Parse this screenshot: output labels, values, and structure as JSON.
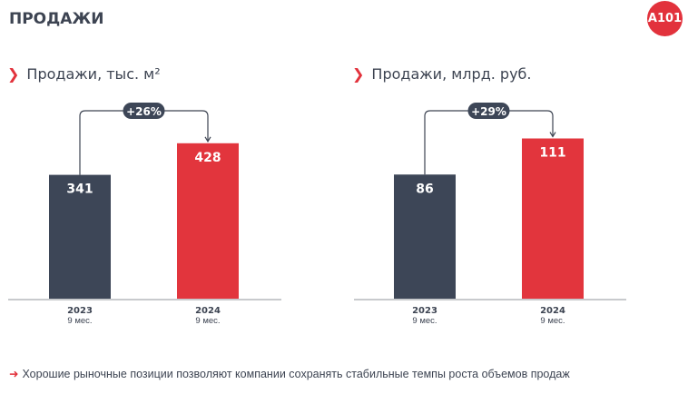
{
  "header": {
    "title": "ПРОДАЖИ",
    "logo": "A101"
  },
  "colors": {
    "dark": "#3d4657",
    "red": "#e2353d"
  },
  "footer": {
    "text": "Хорошие рыночные позиции позволяют компании сохранять стабильные темпы роста объемов продаж"
  },
  "chart_data": [
    {
      "type": "bar",
      "title": "Продажи, тыс. м²",
      "categories": [
        "2023",
        "2024"
      ],
      "category_sub": [
        "9 мес.",
        "9 мес."
      ],
      "values": [
        341,
        428
      ],
      "growth_label": "+26%"
    },
    {
      "type": "bar",
      "title": "Продажи, млрд. руб.",
      "categories": [
        "2023",
        "2024"
      ],
      "category_sub": [
        "9 мес.",
        "9 мес."
      ],
      "values": [
        86,
        111
      ],
      "growth_label": "+29%"
    }
  ]
}
